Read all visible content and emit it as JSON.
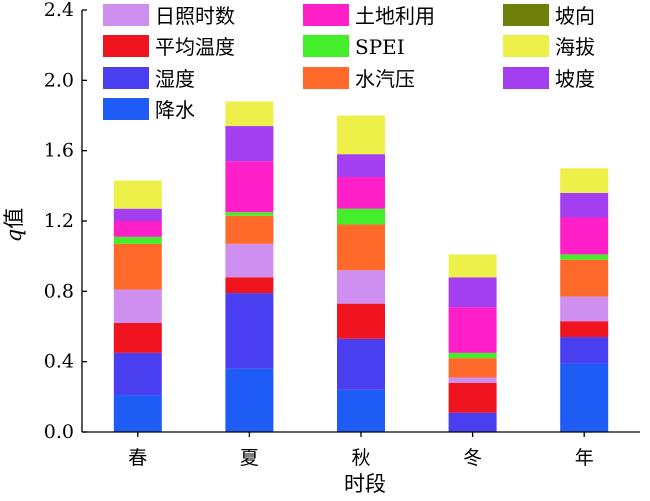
{
  "chart_data": {
    "type": "bar",
    "stacked": true,
    "xlabel": "时段",
    "ylabel": "q值",
    "ylim": [
      0,
      2.4
    ],
    "y_ticks": [
      "0.0",
      "0.4",
      "0.8",
      "1.2",
      "1.6",
      "2.0",
      "2.4"
    ],
    "y_tick_values": [
      0,
      0.4,
      0.8,
      1.2,
      1.6,
      2.0,
      2.4
    ],
    "categories": [
      "春",
      "夏",
      "秋",
      "冬",
      "年"
    ],
    "series": [
      {
        "name": "降水",
        "color": "#1f5cf5",
        "values": [
          0.21,
          0.36,
          0.24,
          0.0,
          0.39
        ]
      },
      {
        "name": "湿度",
        "color": "#4a3ff0",
        "values": [
          0.24,
          0.43,
          0.29,
          0.11,
          0.15
        ]
      },
      {
        "name": "平均温度",
        "color": "#f0141e",
        "values": [
          0.17,
          0.09,
          0.2,
          0.17,
          0.09
        ]
      },
      {
        "name": "日照时数",
        "color": "#cf8ff0",
        "values": [
          0.19,
          0.19,
          0.19,
          0.03,
          0.14
        ]
      },
      {
        "name": "水汽压",
        "color": "#ff6a2a",
        "values": [
          0.26,
          0.16,
          0.26,
          0.11,
          0.21
        ]
      },
      {
        "name": "SPEI",
        "color": "#44ee2a",
        "values": [
          0.04,
          0.02,
          0.09,
          0.03,
          0.03
        ]
      },
      {
        "name": "土地利用",
        "color": "#ff1fc8",
        "values": [
          0.09,
          0.29,
          0.18,
          0.26,
          0.21
        ]
      },
      {
        "name": "坡度",
        "color": "#a33ff0",
        "values": [
          0.07,
          0.2,
          0.13,
          0.17,
          0.14
        ]
      },
      {
        "name": "坡向",
        "color": "#6e7f0a",
        "values": [
          0.0,
          0.0,
          0.0,
          0.0,
          0.0
        ]
      },
      {
        "name": "海拔",
        "color": "#eef04a",
        "values": [
          0.16,
          0.14,
          0.22,
          0.13,
          0.14
        ]
      }
    ],
    "legend": {
      "placement": "top",
      "order": [
        "日照时数",
        "土地利用",
        "坡向",
        "平均温度",
        "SPEI",
        "海拔",
        "湿度",
        "水汽压",
        "坡度",
        "降水"
      ]
    }
  }
}
